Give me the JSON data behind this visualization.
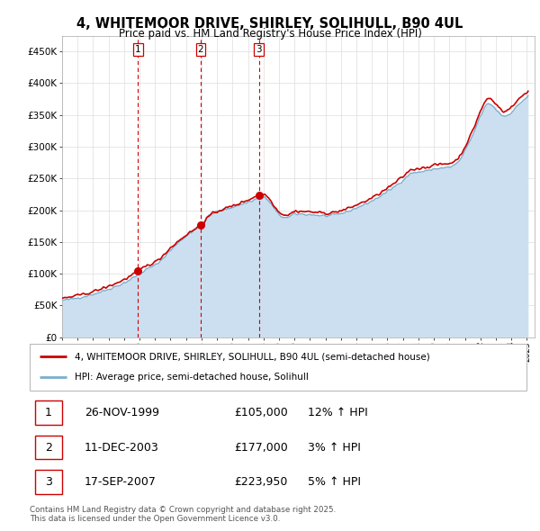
{
  "title": "4, WHITEMOOR DRIVE, SHIRLEY, SOLIHULL, B90 4UL",
  "subtitle": "Price paid vs. HM Land Registry's House Price Index (HPI)",
  "ylim": [
    0,
    475000
  ],
  "yticks": [
    0,
    50000,
    100000,
    150000,
    200000,
    250000,
    300000,
    350000,
    400000,
    450000
  ],
  "ytick_labels": [
    "£0",
    "£50K",
    "£100K",
    "£150K",
    "£200K",
    "£250K",
    "£300K",
    "£350K",
    "£400K",
    "£450K"
  ],
  "legend_label_red": "4, WHITEMOOR DRIVE, SHIRLEY, SOLIHULL, B90 4UL (semi-detached house)",
  "legend_label_blue": "HPI: Average price, semi-detached house, Solihull",
  "sales": [
    {
      "label": "1",
      "date": "26-NOV-1999",
      "price": 105000,
      "hpi": "12% ↑ HPI",
      "x_year": 1999.9
    },
    {
      "label": "2",
      "date": "11-DEC-2003",
      "price": 177000,
      "hpi": "3% ↑ HPI",
      "x_year": 2003.95
    },
    {
      "label": "3",
      "date": "17-SEP-2007",
      "price": 223950,
      "hpi": "5% ↑ HPI",
      "x_year": 2007.71
    }
  ],
  "vline_color": "#cc0000",
  "red_line_color": "#cc0000",
  "blue_line_color": "#7aaecc",
  "blue_fill_color": "#ccdff0",
  "footer": "Contains HM Land Registry data © Crown copyright and database right 2025.\nThis data is licensed under the Open Government Licence v3.0.",
  "xlim_start": 1995.0,
  "xlim_end": 2025.5,
  "xtick_start": 1995,
  "xtick_end": 2026
}
